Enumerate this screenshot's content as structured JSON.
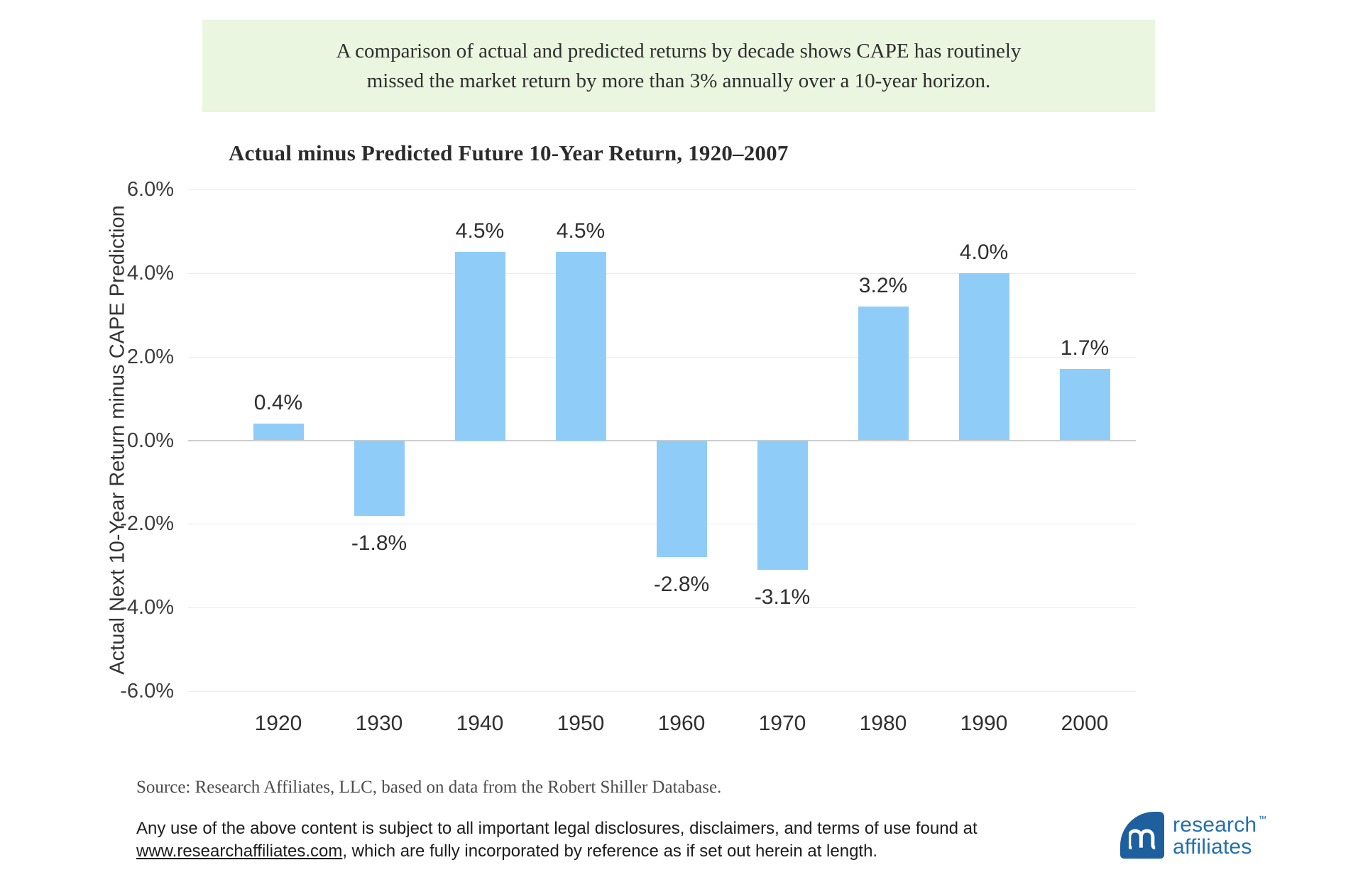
{
  "callout": {
    "line1": "A comparison of actual and predicted returns by decade shows CAPE has routinely",
    "line2": "missed the market return by more than 3% annually over a 10-year horizon."
  },
  "chart_data": {
    "type": "bar",
    "title": "Actual minus Predicted Future 10-Year Return, 1920–2007",
    "categories": [
      "1920",
      "1930",
      "1940",
      "1950",
      "1960",
      "1970",
      "1980",
      "1990",
      "2000"
    ],
    "values": [
      0.4,
      -1.8,
      4.5,
      4.5,
      -2.8,
      -3.1,
      3.2,
      4.0,
      1.7
    ],
    "value_labels": [
      "0.4%",
      "-1.8%",
      "4.5%",
      "4.5%",
      "-2.8%",
      "-3.1%",
      "3.2%",
      "4.0%",
      "1.7%"
    ],
    "xlabel": "",
    "ylabel": "Actual Next 10-Year Return minus CAPE Prediction",
    "ylim": [
      -6,
      6
    ],
    "yticks": [
      "6.0%",
      "4.0%",
      "2.0%",
      "0.0%",
      "-2.0%",
      "-4.0%",
      "-6.0%"
    ],
    "grid": true,
    "legend": "none",
    "bar_color": "#8FCDF8",
    "gridline_color": "#ECECEC",
    "zero_line_color": "#CDCDCD"
  },
  "source_text": "Source: Research Affiliates, LLC, based on data from the Robert Shiller Database.",
  "legal": {
    "line1": "Any use of the above content is subject to all important legal disclosures, disclaimers, and terms of use found at",
    "link": "www.researchaffiliates.com",
    "line2_rest": ", which are fully incorporated by reference as if set out herein at length."
  },
  "logo": {
    "word1": "research",
    "word2": "affiliates",
    "tm": "™",
    "brand_text_color": "#2470AD",
    "mark_color": "#1E5F9E"
  },
  "colors": {
    "callout_background": "#EAF6DF",
    "page_background": "#FFFFFF"
  }
}
